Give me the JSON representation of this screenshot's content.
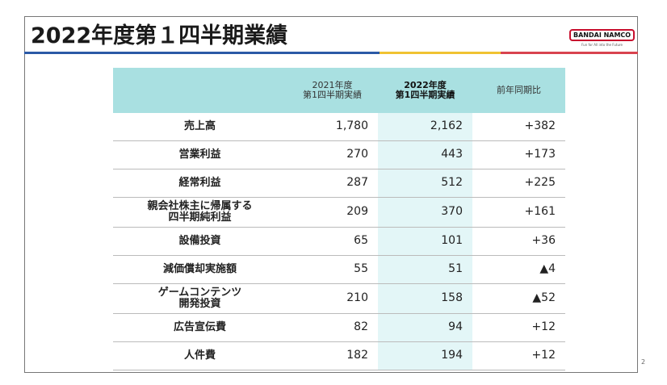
{
  "header": {
    "title": "2022年度第１四半期業績",
    "logo": {
      "name": "BANDAI NAMCO",
      "tagline": "Fun for All into the Future"
    }
  },
  "table": {
    "columns": [
      "",
      "2021年度\n第1四半期実績",
      "2022年度\n第1四半期実績",
      "前年同期比"
    ],
    "rows": [
      [
        "売上高",
        "1,780",
        "2,162",
        "+382"
      ],
      [
        "営業利益",
        "270",
        "443",
        "+173"
      ],
      [
        "経常利益",
        "287",
        "512",
        "+225"
      ],
      [
        "親会社株主に帰属する\n四半期純利益",
        "209",
        "370",
        "+161"
      ],
      [
        "設備投資",
        "65",
        "101",
        "+36"
      ],
      [
        "減価償却実施額",
        "55",
        "51",
        "▲4"
      ],
      [
        "ゲームコンテンツ\n開発投資",
        "210",
        "158",
        "▲52"
      ],
      [
        "広告宣伝費",
        "82",
        "94",
        "+12"
      ],
      [
        "人件費",
        "182",
        "194",
        "+12"
      ]
    ]
  },
  "page_number": 2
}
